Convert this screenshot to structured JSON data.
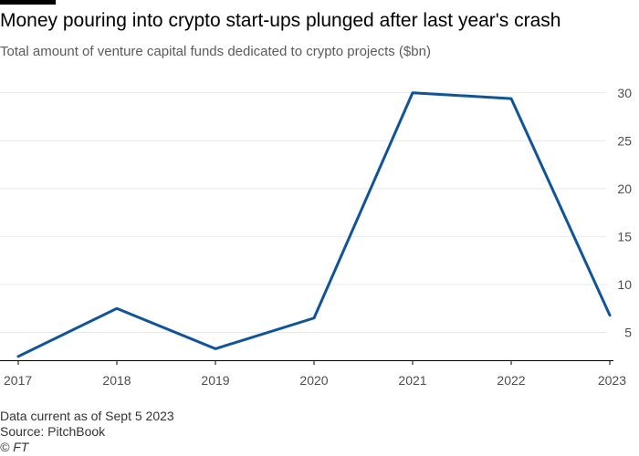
{
  "header": {
    "title": "Money pouring into crypto start-ups plunged after last year's crash",
    "subtitle": "Total amount of venture capital funds dedicated to crypto projects ($bn)"
  },
  "footer": {
    "note": "Data current as of Sept 5 2023",
    "source": "Source: PitchBook",
    "credit": "© FT"
  },
  "chart_data": {
    "type": "line",
    "title": "Money pouring into crypto start-ups plunged after last year's crash",
    "subtitle": "Total amount of venture capital funds dedicated to crypto projects ($bn)",
    "xlabel": "",
    "ylabel": "",
    "x": [
      "2017",
      "2018",
      "2019",
      "2020",
      "2021",
      "2022",
      "2023"
    ],
    "series": [
      {
        "values": [
          2.5,
          7.5,
          3.3,
          6.5,
          30.0,
          29.4,
          6.8
        ],
        "color": "#0f5499"
      }
    ],
    "yticks": [
      5,
      10,
      15,
      20,
      25,
      30
    ],
    "ylim": [
      2.1,
      31.5
    ],
    "y_axis_position": "right",
    "grid": true,
    "gridline_color": "#e8e8e8",
    "axis_color": "#000000"
  }
}
